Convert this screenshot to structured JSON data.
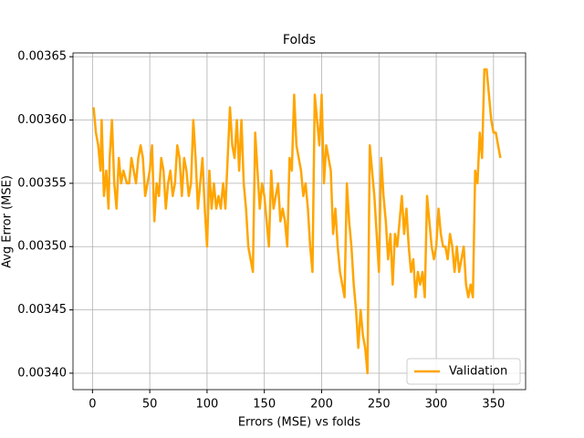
{
  "chart_data": {
    "type": "line",
    "title": "Folds",
    "xlabel": "Errors (MSE) vs folds",
    "ylabel": "Avg Error (MSE)",
    "x": [
      1,
      3,
      5,
      7,
      8,
      10,
      12,
      14,
      15,
      17,
      19,
      21,
      23,
      25,
      27,
      30,
      32,
      34,
      36,
      38,
      40,
      42,
      44,
      46,
      48,
      50,
      52,
      54,
      56,
      58,
      60,
      62,
      64,
      66,
      68,
      70,
      72,
      74,
      76,
      78,
      80,
      82,
      84,
      86,
      88,
      90,
      92,
      94,
      96,
      98,
      100,
      102,
      104,
      106,
      108,
      110,
      112,
      114,
      116,
      118,
      120,
      122,
      124,
      126,
      128,
      130,
      132,
      134,
      136,
      138,
      140,
      142,
      144,
      146,
      148,
      150,
      152,
      154,
      156,
      158,
      160,
      162,
      164,
      166,
      168,
      170,
      172,
      174,
      176,
      178,
      180,
      182,
      184,
      186,
      188,
      190,
      192,
      194,
      196,
      198,
      200,
      202,
      204,
      206,
      208,
      210,
      212,
      214,
      216,
      218,
      220,
      222,
      224,
      226,
      228,
      230,
      232,
      234,
      236,
      238,
      240,
      242,
      244,
      246,
      248,
      250,
      252,
      254,
      256,
      258,
      260,
      262,
      264,
      266,
      268,
      270,
      272,
      274,
      276,
      278,
      280,
      282,
      284,
      286,
      288,
      290,
      292,
      294,
      296,
      298,
      300,
      302,
      304,
      306,
      308,
      310,
      312,
      314,
      316,
      318,
      320,
      322,
      324,
      326,
      328,
      330,
      332,
      334,
      336,
      338,
      340,
      342,
      344,
      346,
      348,
      350,
      352,
      354,
      356
    ],
    "series": [
      {
        "name": "Validation",
        "color": "#ffa500",
        "values": [
          0.00361,
          0.00359,
          0.00358,
          0.00356,
          0.0036,
          0.00354,
          0.00356,
          0.00353,
          0.00357,
          0.0036,
          0.00355,
          0.00353,
          0.00357,
          0.00355,
          0.00356,
          0.00355,
          0.00355,
          0.00357,
          0.00356,
          0.00355,
          0.00357,
          0.00358,
          0.00357,
          0.00354,
          0.00355,
          0.00356,
          0.00358,
          0.00352,
          0.00355,
          0.00354,
          0.00357,
          0.00356,
          0.00353,
          0.00355,
          0.00356,
          0.00354,
          0.00355,
          0.00358,
          0.00357,
          0.00354,
          0.00357,
          0.00356,
          0.00354,
          0.00355,
          0.0036,
          0.00357,
          0.00353,
          0.00355,
          0.00357,
          0.00353,
          0.0035,
          0.00356,
          0.00353,
          0.00355,
          0.00353,
          0.00354,
          0.00353,
          0.00355,
          0.00353,
          0.00357,
          0.00361,
          0.00358,
          0.00357,
          0.0036,
          0.00356,
          0.0036,
          0.00355,
          0.00353,
          0.0035,
          0.00349,
          0.00348,
          0.00359,
          0.00356,
          0.00353,
          0.00355,
          0.00354,
          0.00352,
          0.0035,
          0.00356,
          0.00353,
          0.00354,
          0.00355,
          0.00352,
          0.00353,
          0.00352,
          0.0035,
          0.00357,
          0.00356,
          0.00362,
          0.00358,
          0.00357,
          0.00356,
          0.00354,
          0.00355,
          0.00353,
          0.0035,
          0.00348,
          0.00362,
          0.0036,
          0.00358,
          0.00362,
          0.00355,
          0.00358,
          0.00357,
          0.00356,
          0.00351,
          0.00353,
          0.0035,
          0.00348,
          0.00347,
          0.00346,
          0.00355,
          0.00352,
          0.0035,
          0.00347,
          0.00345,
          0.00342,
          0.00345,
          0.00343,
          0.00342,
          0.0034,
          0.00358,
          0.00356,
          0.00354,
          0.00351,
          0.00348,
          0.00357,
          0.00354,
          0.00352,
          0.00349,
          0.00351,
          0.00347,
          0.00351,
          0.0035,
          0.00352,
          0.00354,
          0.00351,
          0.00353,
          0.0035,
          0.00348,
          0.00349,
          0.00346,
          0.00348,
          0.00347,
          0.00348,
          0.00346,
          0.00354,
          0.00352,
          0.0035,
          0.00349,
          0.0035,
          0.00353,
          0.00351,
          0.0035,
          0.0035,
          0.00349,
          0.00351,
          0.0035,
          0.00348,
          0.0035,
          0.00348,
          0.00349,
          0.0035,
          0.00347,
          0.00346,
          0.00347,
          0.00346,
          0.00356,
          0.00355,
          0.00359,
          0.00357,
          0.00364,
          0.00364,
          0.00362,
          0.0036,
          0.00359,
          0.00359,
          0.00358,
          0.00357
        ]
      }
    ],
    "xlim": [
      -17,
      378
    ],
    "ylim": [
      0.003387,
      0.003653
    ],
    "xticks": [
      0,
      50,
      100,
      150,
      200,
      250,
      300,
      350
    ],
    "yticks": [
      {
        "value": 0.0034,
        "label": "0.00340"
      },
      0.00345,
      {
        "value": 0.0035,
        "label": "0.00350"
      },
      0.00355,
      {
        "value": 0.0036,
        "label": "0.00360"
      },
      0.00365
    ],
    "grid": true,
    "legend": "lower right"
  }
}
